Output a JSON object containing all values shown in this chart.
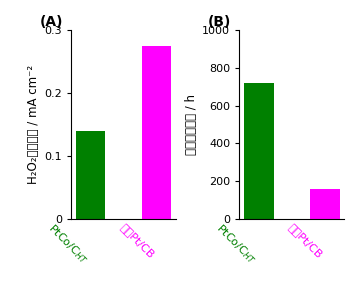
{
  "subplot_A": {
    "label": "(A)",
    "categories_latin": [
      "PtCo/C",
      "HT"
    ],
    "categories_display": [
      "PtCo/C$_{HT}$",
      "市唯Pt/CB"
    ],
    "values": [
      0.14,
      0.275
    ],
    "colors": [
      "#008000",
      "#FF00FF"
    ],
    "ylabel_lines": [
      "H₂O₂生成速度 / mA cm⁻²"
    ],
    "ylim": [
      0,
      0.3
    ],
    "yticks": [
      0.0,
      0.1,
      0.2,
      0.3
    ],
    "ytick_labels": [
      "0",
      "0.1",
      "0.2",
      "0.3"
    ]
  },
  "subplot_B": {
    "label": "(B)",
    "categories_display": [
      "PtCo/C$_{HT}$",
      "市唯Pt/CB"
    ],
    "values": [
      720,
      160
    ],
    "colors": [
      "#008000",
      "#FF00FF"
    ],
    "ylabel_lines": [
      "電池單元壽命 / h"
    ],
    "ylim": [
      0,
      1000
    ],
    "yticks": [
      0,
      200,
      400,
      600,
      800,
      1000
    ],
    "ytick_labels": [
      "0",
      "200",
      "400",
      "600",
      "800",
      "1000"
    ]
  },
  "bar_width": 0.45,
  "tick_label_rotation": -45,
  "label_fontsize": 8.5,
  "tick_fontsize": 8,
  "panel_label_fontsize": 10,
  "panel_label_fontweight": "bold"
}
